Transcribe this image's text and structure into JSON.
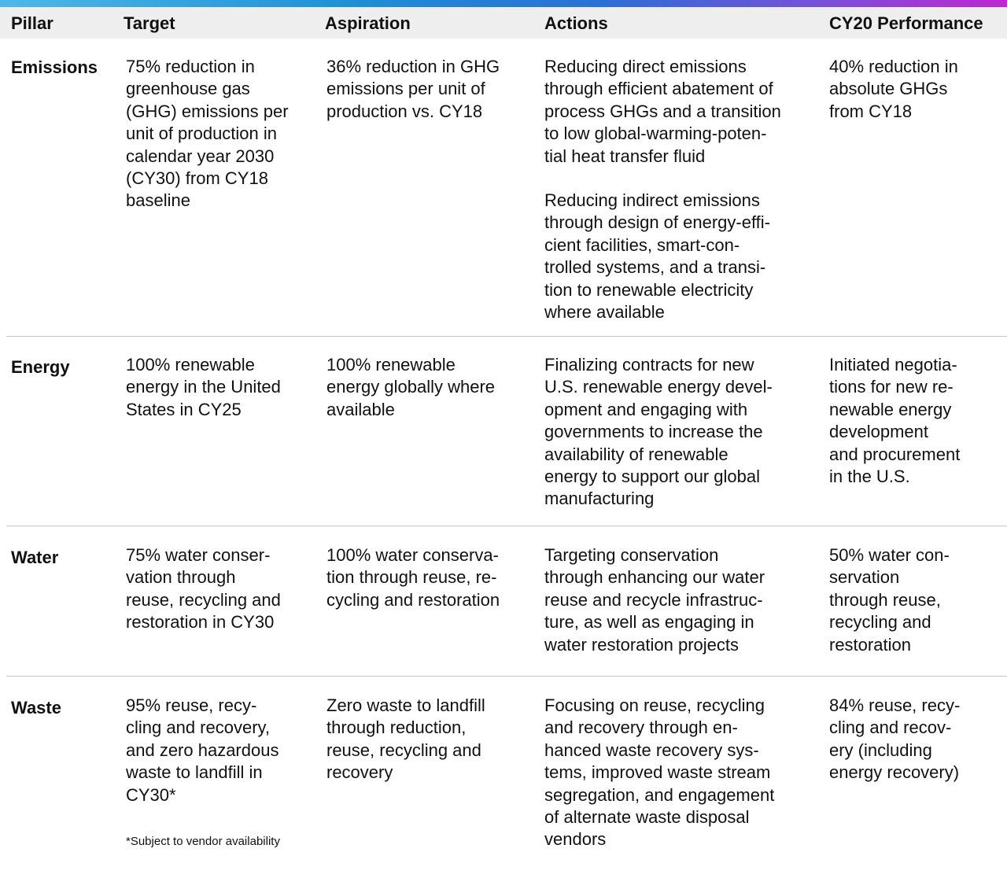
{
  "header": {
    "pillar": "Pillar",
    "target": "Target",
    "aspiration": "Aspiration",
    "actions": "Actions",
    "performance": "CY20 Performance"
  },
  "rows": [
    {
      "pillar": "Emissions",
      "target": "75% reduction in\ngreenhouse gas\n(GHG) emissions per\nunit of production in\ncalendar year 2030\n(CY30) from CY18\nbaseline",
      "aspiration": "36% reduction in GHG\nemissions per unit of\nproduction vs. CY18",
      "actions_1": "Reducing direct emissions\nthrough efficient abatement of\nprocess GHGs and a transition\nto low global-warming-poten-\ntial heat transfer fluid",
      "actions_2": "Reducing indirect emissions\nthrough design of energy-effi-\ncient facilities, smart-con-\ntrolled systems, and a transi-\ntion to renewable electricity\nwhere available",
      "performance": "40% reduction in\nabsolute GHGs\nfrom CY18"
    },
    {
      "pillar": "Energy",
      "target": "100% renewable\nenergy in the United\nStates in CY25",
      "aspiration": "100% renewable\nenergy globally where\navailable",
      "actions_1": "Finalizing contracts for new\nU.S. renewable energy devel-\nopment and engaging with\ngovernments to increase the\navailability of renewable\nenergy to support our global\nmanufacturing",
      "performance": "Initiated negotia-\ntions for new re-\nnewable energy\ndevelopment\nand procurement\nin the U.S."
    },
    {
      "pillar": "Water",
      "target": "75% water conser-\nvation through\nreuse, recycling and\nrestoration in CY30",
      "aspiration": "100% water conserva-\ntion through reuse, re-\ncycling and restoration",
      "actions_1": "Targeting conservation\nthrough enhancing our water\nreuse and recycle infrastruc-\nture, as well as engaging in\nwater restoration projects",
      "performance": "50% water con-\nservation\nthrough reuse,\nrecycling and\nrestoration"
    },
    {
      "pillar": "Waste",
      "target": "95% reuse, recy-\ncling and recovery,\nand zero hazardous\nwaste to landfill in\nCY30*",
      "footnote": "*Subject to vendor availability",
      "aspiration": "Zero waste to landfill\nthrough reduction,\nreuse, recycling and\nrecovery",
      "actions_1": "Focusing on reuse, recycling\nand recovery through en-\nhanced waste recovery sys-\ntems, improved waste stream\nsegregation, and engagement\nof alternate waste disposal\nvendors",
      "performance": "84% reuse, recy-\ncling and recov-\nery (including\nenergy recovery)"
    }
  ]
}
